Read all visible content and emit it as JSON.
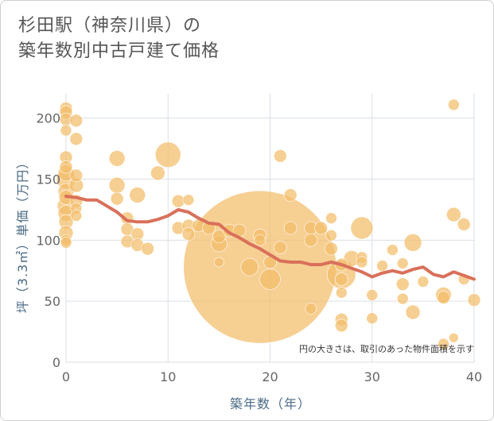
{
  "header": {
    "title_line1": "杉田駅（神奈川県）の",
    "title_line2": "築年数別中古戸建て価格"
  },
  "chart_data": {
    "type": "scatter",
    "title": "杉田駅（神奈川県）の築年数別中古戸建て価格",
    "xlabel": "築年数（年）",
    "ylabel": "坪（3.3㎡）単価（万円）",
    "xlim": [
      0,
      40
    ],
    "ylim": [
      0,
      220
    ],
    "x_ticks": [
      0,
      10,
      20,
      30,
      40
    ],
    "y_ticks": [
      0,
      50,
      100,
      150,
      200
    ],
    "grid": true,
    "note": "円の大きさは、取引のあった物件面積を示す",
    "colors": {
      "bubble": "#f2bc6a",
      "line": "#d9705a",
      "grid": "#d9dfe6"
    },
    "points": [
      {
        "x": 0,
        "y": 208,
        "s": 8
      },
      {
        "x": 0,
        "y": 205,
        "s": 8
      },
      {
        "x": 0,
        "y": 199,
        "s": 8
      },
      {
        "x": 1,
        "y": 198,
        "s": 8
      },
      {
        "x": 0,
        "y": 190,
        "s": 7
      },
      {
        "x": 1,
        "y": 183,
        "s": 8
      },
      {
        "x": 0,
        "y": 168,
        "s": 8
      },
      {
        "x": 0,
        "y": 160,
        "s": 8
      },
      {
        "x": 0,
        "y": 155,
        "s": 10
      },
      {
        "x": 1,
        "y": 153,
        "s": 8
      },
      {
        "x": 0,
        "y": 150,
        "s": 12
      },
      {
        "x": 1,
        "y": 145,
        "s": 9
      },
      {
        "x": 0,
        "y": 140,
        "s": 10
      },
      {
        "x": 0,
        "y": 135,
        "s": 9
      },
      {
        "x": 1,
        "y": 132,
        "s": 8
      },
      {
        "x": 0,
        "y": 128,
        "s": 11
      },
      {
        "x": 1,
        "y": 126,
        "s": 7
      },
      {
        "x": 0,
        "y": 122,
        "s": 10
      },
      {
        "x": 1,
        "y": 120,
        "s": 7
      },
      {
        "x": 0,
        "y": 115,
        "s": 9
      },
      {
        "x": 0,
        "y": 106,
        "s": 9
      },
      {
        "x": 0,
        "y": 100,
        "s": 7
      },
      {
        "x": 0,
        "y": 98,
        "s": 7
      },
      {
        "x": 5,
        "y": 167,
        "s": 10
      },
      {
        "x": 5,
        "y": 145,
        "s": 10
      },
      {
        "x": 5,
        "y": 134,
        "s": 8
      },
      {
        "x": 6,
        "y": 118,
        "s": 8
      },
      {
        "x": 6,
        "y": 109,
        "s": 8
      },
      {
        "x": 6,
        "y": 99,
        "s": 8
      },
      {
        "x": 7,
        "y": 137,
        "s": 10
      },
      {
        "x": 7,
        "y": 105,
        "s": 8
      },
      {
        "x": 7,
        "y": 96,
        "s": 8
      },
      {
        "x": 8,
        "y": 93,
        "s": 8
      },
      {
        "x": 9,
        "y": 155,
        "s": 9
      },
      {
        "x": 10,
        "y": 170,
        "s": 16
      },
      {
        "x": 11,
        "y": 132,
        "s": 8
      },
      {
        "x": 11,
        "y": 110,
        "s": 8
      },
      {
        "x": 12,
        "y": 133,
        "s": 7
      },
      {
        "x": 12,
        "y": 112,
        "s": 8
      },
      {
        "x": 12,
        "y": 105,
        "s": 8
      },
      {
        "x": 13,
        "y": 112,
        "s": 8
      },
      {
        "x": 14,
        "y": 110,
        "s": 8
      },
      {
        "x": 15,
        "y": 103,
        "s": 8
      },
      {
        "x": 15,
        "y": 97,
        "s": 10
      },
      {
        "x": 15,
        "y": 82,
        "s": 6
      },
      {
        "x": 16,
        "y": 108,
        "s": 8
      },
      {
        "x": 17,
        "y": 108,
        "s": 8
      },
      {
        "x": 18,
        "y": 78,
        "s": 11
      },
      {
        "x": 19,
        "y": 78,
        "s": 96
      },
      {
        "x": 19,
        "y": 104,
        "s": 8
      },
      {
        "x": 19,
        "y": 100,
        "s": 7
      },
      {
        "x": 20,
        "y": 68,
        "s": 13
      },
      {
        "x": 20,
        "y": 82,
        "s": 8
      },
      {
        "x": 21,
        "y": 169,
        "s": 8
      },
      {
        "x": 21,
        "y": 94,
        "s": 8
      },
      {
        "x": 22,
        "y": 137,
        "s": 8
      },
      {
        "x": 22,
        "y": 110,
        "s": 8
      },
      {
        "x": 24,
        "y": 110,
        "s": 8
      },
      {
        "x": 24,
        "y": 100,
        "s": 8
      },
      {
        "x": 24,
        "y": 44,
        "s": 7
      },
      {
        "x": 25,
        "y": 110,
        "s": 8
      },
      {
        "x": 26,
        "y": 118,
        "s": 7
      },
      {
        "x": 26,
        "y": 104,
        "s": 7
      },
      {
        "x": 26,
        "y": 93,
        "s": 8
      },
      {
        "x": 27,
        "y": 80,
        "s": 8
      },
      {
        "x": 27,
        "y": 72,
        "s": 18
      },
      {
        "x": 27,
        "y": 68,
        "s": 8
      },
      {
        "x": 27,
        "y": 57,
        "s": 7
      },
      {
        "x": 27,
        "y": 35,
        "s": 8
      },
      {
        "x": 27,
        "y": 30,
        "s": 8
      },
      {
        "x": 28,
        "y": 85,
        "s": 10
      },
      {
        "x": 29,
        "y": 110,
        "s": 14
      },
      {
        "x": 29,
        "y": 86,
        "s": 7
      },
      {
        "x": 29,
        "y": 82,
        "s": 7
      },
      {
        "x": 30,
        "y": 55,
        "s": 7
      },
      {
        "x": 30,
        "y": 36,
        "s": 7
      },
      {
        "x": 31,
        "y": 79,
        "s": 7
      },
      {
        "x": 32,
        "y": 92,
        "s": 7
      },
      {
        "x": 33,
        "y": 81,
        "s": 7
      },
      {
        "x": 33,
        "y": 64,
        "s": 8
      },
      {
        "x": 33,
        "y": 52,
        "s": 7
      },
      {
        "x": 34,
        "y": 98,
        "s": 11
      },
      {
        "x": 34,
        "y": 41,
        "s": 9
      },
      {
        "x": 35,
        "y": 66,
        "s": 7
      },
      {
        "x": 37,
        "y": 55,
        "s": 10
      },
      {
        "x": 37,
        "y": 53,
        "s": 8
      },
      {
        "x": 37,
        "y": 15,
        "s": 7
      },
      {
        "x": 38,
        "y": 211,
        "s": 7
      },
      {
        "x": 38,
        "y": 121,
        "s": 9
      },
      {
        "x": 38,
        "y": 20,
        "s": 6
      },
      {
        "x": 39,
        "y": 113,
        "s": 8
      },
      {
        "x": 39,
        "y": 68,
        "s": 7
      },
      {
        "x": 40,
        "y": 51,
        "s": 8
      }
    ],
    "trend_line": {
      "x": [
        0,
        1,
        2,
        3,
        4,
        5,
        6,
        7,
        8,
        9,
        10,
        11,
        12,
        13,
        14,
        15,
        16,
        17,
        18,
        19,
        20,
        21,
        22,
        23,
        24,
        25,
        26,
        27,
        28,
        29,
        30,
        31,
        32,
        33,
        34,
        35,
        36,
        37,
        38,
        39,
        40
      ],
      "y": [
        136,
        135,
        133,
        133,
        128,
        123,
        116,
        115,
        115,
        117,
        120,
        125,
        123,
        118,
        114,
        113,
        106,
        102,
        97,
        93,
        88,
        83,
        82,
        82,
        80,
        80,
        82,
        80,
        77,
        74,
        70,
        73,
        75,
        73,
        76,
        78,
        72,
        70,
        74,
        71,
        68
      ]
    }
  }
}
